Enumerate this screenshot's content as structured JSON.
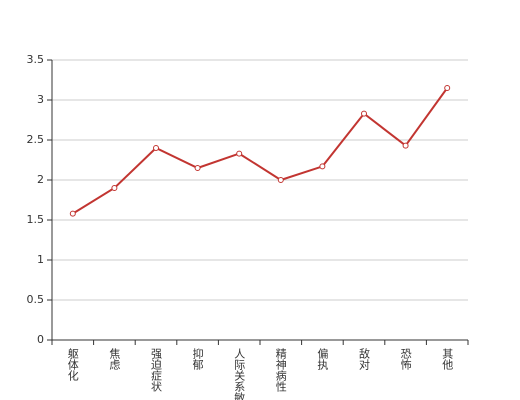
{
  "chart_data": {
    "type": "line",
    "categories": [
      "躯体化",
      "焦虑",
      "强迫症状",
      "抑郁",
      "人际关系敏感",
      "精神病性",
      "偏执",
      "敌对",
      "恐怖",
      "其他"
    ],
    "values": [
      1.58,
      1.9,
      2.4,
      2.15,
      2.33,
      2.0,
      2.17,
      2.83,
      2.43,
      3.15
    ],
    "color": "#c23531",
    "ylim": [
      0,
      3.5
    ],
    "yticks": [
      0,
      0.5,
      1,
      1.5,
      2,
      2.5,
      3,
      3.5
    ],
    "grid": true
  }
}
